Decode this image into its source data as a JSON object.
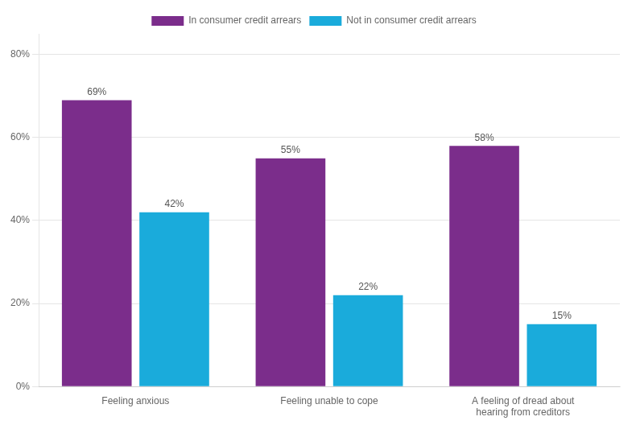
{
  "chart_data": {
    "type": "bar",
    "categories": [
      "Feeling anxious",
      "Feeling unable to cope",
      "A feeling of dread about\nhearing from creditors"
    ],
    "series": [
      {
        "name": "In consumer credit arrears",
        "color": "#7B2D8B",
        "values": [
          69,
          55,
          58
        ],
        "value_labels": [
          "69%",
          "55%",
          "58%"
        ]
      },
      {
        "name": "Not in consumer credit arrears",
        "color": "#1AABDB",
        "values": [
          42,
          22,
          15
        ],
        "value_labels": [
          "42%",
          "22%",
          "15%"
        ]
      }
    ],
    "ylim": [
      0,
      85
    ],
    "yticks": [
      {
        "value": 0,
        "label": "0%"
      },
      {
        "value": 20,
        "label": "20%"
      },
      {
        "value": 40,
        "label": "40%"
      },
      {
        "value": 60,
        "label": "60%"
      },
      {
        "value": 80,
        "label": "80%"
      }
    ],
    "grid": true,
    "legend": "top",
    "data_labels": true
  }
}
